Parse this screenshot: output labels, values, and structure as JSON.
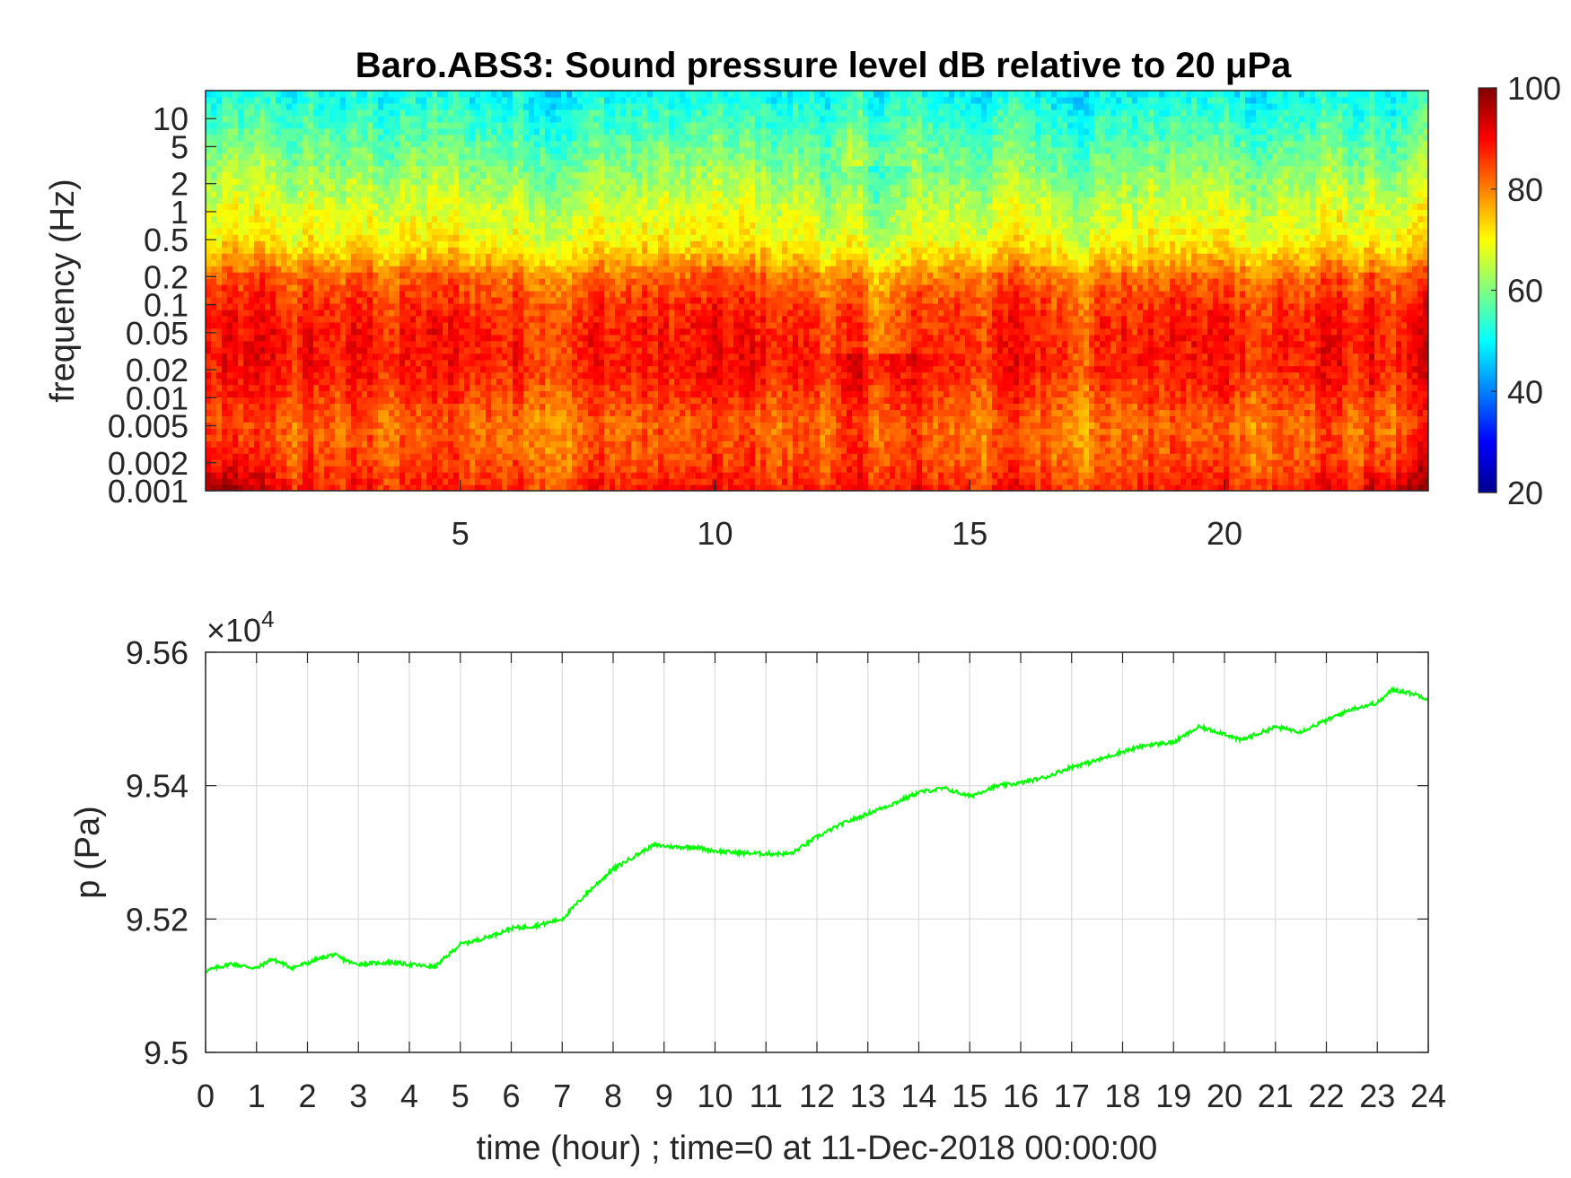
{
  "chart_data": [
    {
      "type": "heatmap",
      "title": "Baro.ABS3: Sound pressure level dB relative to 20 μPa",
      "xlabel": "",
      "ylabel": "frequency (Hz)",
      "yscale": "log",
      "xlim": [
        0,
        24
      ],
      "ylim": [
        0.001,
        20
      ],
      "x_ticks": [
        5,
        10,
        15,
        20
      ],
      "y_ticks": [
        0.001,
        0.002,
        0.005,
        0.01,
        0.02,
        0.05,
        0.1,
        0.2,
        0.5,
        1,
        2,
        5,
        10
      ],
      "y_tick_labels": [
        "0.001",
        "0.002",
        "0.005",
        "0.01",
        "0.02",
        "0.05",
        "0.1",
        "0.2",
        "0.5",
        "1",
        "2",
        "5",
        "10"
      ],
      "colorbar": {
        "colormap": "jet",
        "range": [
          20,
          100
        ],
        "ticks": [
          20,
          40,
          60,
          80,
          100
        ],
        "stops": [
          "#00008f",
          "#0000ff",
          "#0080ff",
          "#00ffff",
          "#80ff80",
          "#ffff00",
          "#ff8000",
          "#ff0000",
          "#800000"
        ]
      },
      "level_profile_db": {
        "freq_hz": [
          0.001,
          0.002,
          0.005,
          0.01,
          0.02,
          0.05,
          0.1,
          0.2,
          0.3,
          0.5,
          1,
          2,
          5,
          10,
          20
        ],
        "level_db": [
          88,
          84,
          82,
          85,
          88,
          88,
          86,
          82,
          76,
          70,
          67,
          63,
          58,
          54,
          50
        ]
      },
      "grid": false
    },
    {
      "type": "line",
      "title": "",
      "xlabel": "time (hour) ; time=0 at 11-Dec-2018 00:00:00",
      "ylabel": "p (Pa)",
      "xlim": [
        0,
        24
      ],
      "ylim": [
        95000,
        95600
      ],
      "y_exponent_label": "×10",
      "y_exponent": "4",
      "x_ticks": [
        0,
        1,
        2,
        3,
        4,
        5,
        6,
        7,
        8,
        9,
        10,
        11,
        12,
        13,
        14,
        15,
        16,
        17,
        18,
        19,
        20,
        21,
        22,
        23,
        24
      ],
      "y_ticks": [
        95000,
        95200,
        95400,
        95600
      ],
      "y_tick_labels": [
        "9.5",
        "9.52",
        "9.54",
        "9.56"
      ],
      "grid": true,
      "line_color": "#00ff00",
      "series": [
        {
          "x": [
            0,
            0.5,
            1,
            1.3,
            1.7,
            2,
            2.5,
            2.9,
            3.2,
            3.6,
            4,
            4.5,
            5,
            5.5,
            6,
            6.5,
            7,
            7.5,
            8,
            8.5,
            8.8,
            9.2,
            9.6,
            10,
            10.5,
            11,
            11.5,
            12,
            12.5,
            13,
            13.5,
            14,
            14.5,
            15,
            15.5,
            16,
            16.5,
            17,
            17.5,
            18,
            18.5,
            19,
            19.5,
            20,
            20.3,
            20.7,
            21,
            21.5,
            22,
            22.5,
            23,
            23.3,
            23.7,
            24
          ],
          "y": [
            95122,
            95133,
            95126,
            95140,
            95127,
            95134,
            95147,
            95133,
            95133,
            95135,
            95132,
            95128,
            95162,
            95172,
            95186,
            95190,
            95200,
            95240,
            95275,
            95298,
            95311,
            95308,
            95308,
            95302,
            95299,
            95298,
            95298,
            95323,
            95343,
            95358,
            95373,
            95390,
            95396,
            95384,
            95399,
            95404,
            95413,
            95428,
            95438,
            95451,
            95461,
            95465,
            95488,
            95478,
            95468,
            95479,
            95488,
            95481,
            95498,
            95515,
            95524,
            95544,
            95538,
            95530
          ]
        }
      ]
    }
  ]
}
